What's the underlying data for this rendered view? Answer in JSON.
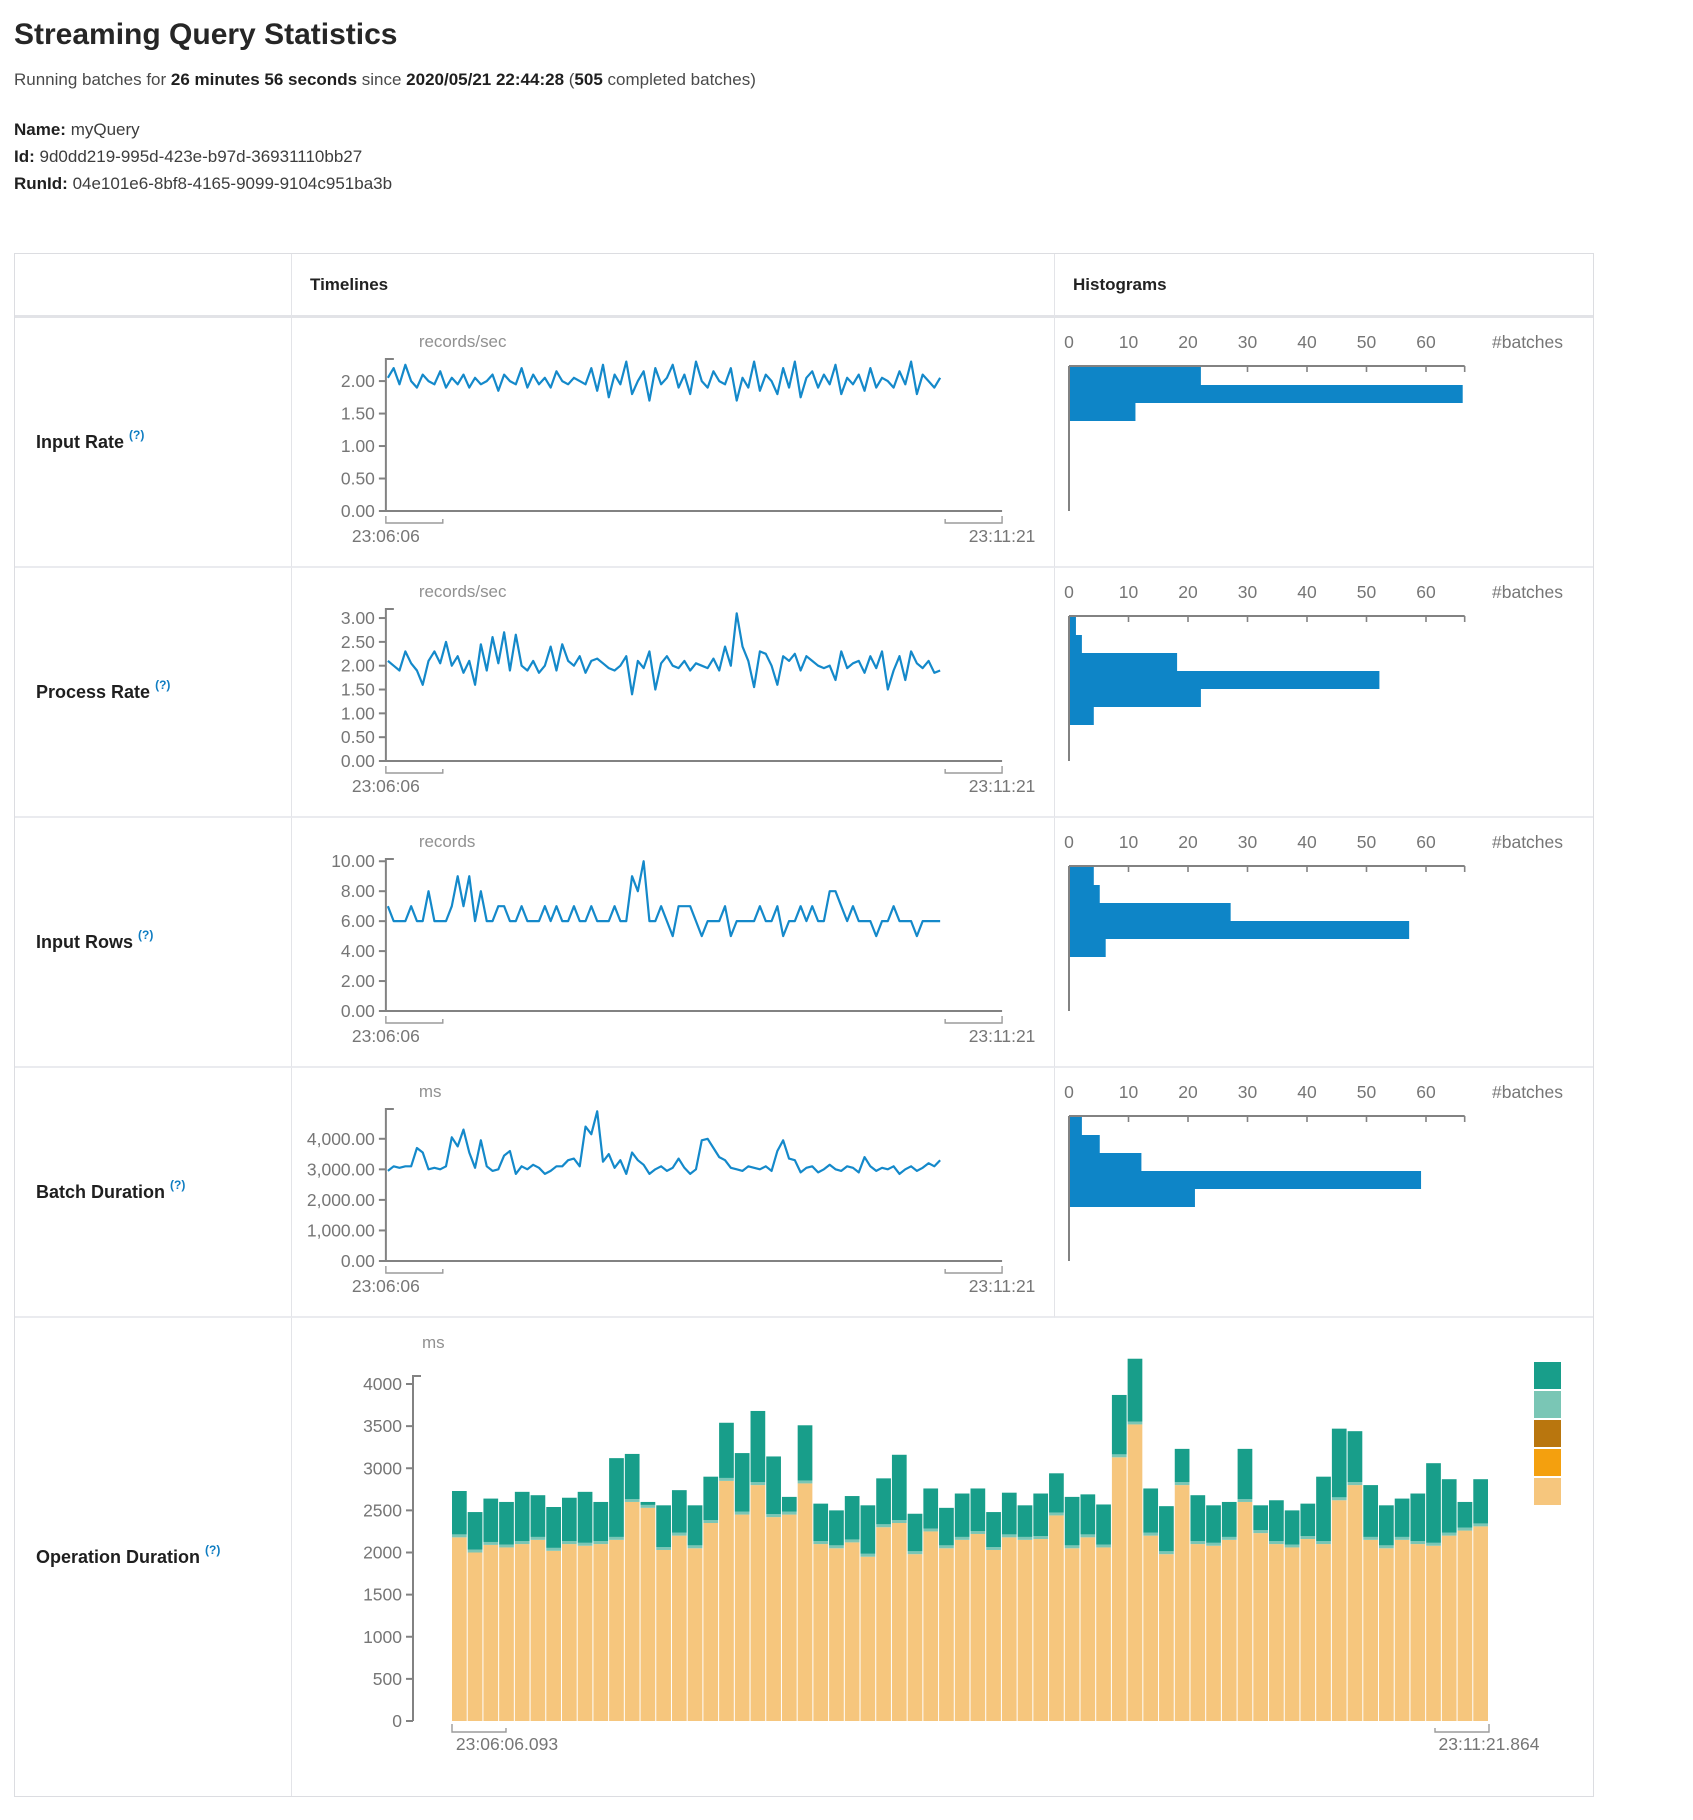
{
  "page": {
    "title": "Streaming Query Statistics",
    "subtitle": {
      "prefix": "Running batches for ",
      "duration": "26 minutes 56 seconds",
      "mid": " since ",
      "since": "2020/05/21 22:44:28",
      "paren_open": " (",
      "completed_count": "505",
      "paren_close": " completed batches)"
    },
    "query": {
      "name_label": "Name:",
      "name_value": "myQuery",
      "id_label": "Id:",
      "id_value": "9d0dd219-995d-423e-b97d-36931110bb27",
      "runid_label": "RunId:",
      "runid_value": "04e101e6-8bf8-4165-9099-9104c951ba3b"
    }
  },
  "table": {
    "headers": {
      "timelines": "Timelines",
      "histograms": "Histograms"
    }
  },
  "ui": {
    "help_marker": "(?)"
  },
  "colors": {
    "line_blue": "#1489ca",
    "hist_blue": "#0e85c7",
    "axis_gray": "#828282",
    "tick_text": "#767676",
    "unit_text": "#919191",
    "op_green": "#189e8a",
    "op_light_teal": "#7ac6b5",
    "op_brown": "#b9760e",
    "op_orange": "#f4a00e",
    "op_tan": "#f6c67d"
  },
  "chart_data": [
    {
      "row": "Input Rate",
      "type": "line",
      "unit": "records/sec",
      "x_start": "23:06:06",
      "x_end": "23:11:21",
      "y_ticks": [
        "0.00",
        "0.50",
        "1.00",
        "1.50",
        "2.00"
      ],
      "y_tick_values": [
        0,
        0.5,
        1,
        1.5,
        2
      ],
      "y_axis_top": 2.34,
      "values": [
        2.05,
        2.2,
        1.95,
        2.25,
        2.0,
        1.9,
        2.1,
        2.0,
        1.95,
        2.15,
        1.9,
        2.05,
        1.95,
        2.1,
        1.9,
        2.05,
        1.95,
        2.0,
        2.1,
        1.85,
        2.1,
        2.0,
        1.95,
        2.2,
        1.9,
        2.1,
        1.95,
        2.05,
        1.9,
        2.15,
        2.0,
        1.95,
        2.05,
        2.0,
        1.95,
        2.2,
        1.85,
        2.25,
        1.75,
        2.1,
        1.95,
        2.3,
        1.8,
        2.0,
        2.15,
        1.7,
        2.2,
        1.95,
        2.05,
        2.25,
        1.9,
        2.1,
        1.8,
        2.3,
        2.0,
        1.9,
        2.15,
        2.0,
        1.95,
        2.2,
        1.7,
        2.05,
        1.9,
        2.3,
        1.85,
        2.1,
        2.0,
        1.8,
        2.2,
        1.9,
        2.3,
        1.75,
        2.05,
        2.15,
        1.9,
        2.1,
        1.95,
        2.25,
        1.8,
        2.05,
        1.95,
        2.1,
        1.85,
        2.2,
        1.9,
        2.05,
        2.0,
        1.9,
        2.15,
        1.95,
        2.3,
        1.8,
        2.1,
        2.0,
        1.9,
        2.05
      ],
      "histogram": {
        "x_ticks": [
          0,
          10,
          20,
          30,
          40,
          50,
          60
        ],
        "x_tick_labels": [
          "0",
          "10",
          "20",
          "30",
          "40",
          "50",
          "60"
        ],
        "axis_end_value": 66.5,
        "label": "#batches",
        "bins": [
          22,
          66,
          11
        ]
      }
    },
    {
      "row": "Process Rate",
      "type": "line",
      "unit": "records/sec",
      "x_start": "23:06:06",
      "x_end": "23:11:21",
      "y_ticks": [
        "0.00",
        "0.50",
        "1.00",
        "1.50",
        "2.00",
        "2.50",
        "3.00"
      ],
      "y_tick_values": [
        0,
        0.5,
        1,
        1.5,
        2,
        2.5,
        3
      ],
      "y_axis_top": 3.19,
      "values": [
        2.1,
        2.0,
        1.9,
        2.3,
        2.05,
        1.9,
        1.6,
        2.1,
        2.3,
        2.05,
        2.5,
        2.0,
        2.2,
        1.85,
        2.1,
        1.6,
        2.45,
        1.9,
        2.6,
        2.05,
        2.7,
        1.9,
        2.65,
        2.0,
        1.9,
        2.1,
        1.85,
        2.0,
        2.4,
        1.9,
        2.45,
        2.1,
        2.0,
        2.2,
        1.85,
        2.1,
        2.15,
        2.05,
        1.95,
        1.9,
        2.0,
        2.2,
        1.4,
        2.1,
        1.95,
        2.3,
        1.5,
        2.05,
        2.2,
        2.0,
        1.95,
        2.1,
        1.9,
        2.05,
        2.0,
        1.95,
        2.15,
        1.9,
        2.4,
        2.0,
        3.1,
        2.4,
        2.1,
        1.55,
        2.3,
        2.25,
        2.0,
        1.6,
        2.2,
        2.1,
        2.25,
        1.9,
        2.2,
        2.1,
        2.0,
        1.95,
        2.0,
        1.7,
        2.3,
        1.95,
        2.05,
        2.1,
        1.85,
        2.2,
        1.95,
        2.3,
        1.5,
        1.9,
        2.2,
        1.7,
        2.3,
        2.05,
        1.95,
        2.1,
        1.85,
        1.9
      ],
      "histogram": {
        "x_ticks": [
          0,
          10,
          20,
          30,
          40,
          50,
          60
        ],
        "x_tick_labels": [
          "0",
          "10",
          "20",
          "30",
          "40",
          "50",
          "60"
        ],
        "axis_end_value": 66.5,
        "label": "#batches",
        "bins": [
          1,
          2,
          18,
          52,
          22,
          4
        ]
      }
    },
    {
      "row": "Input Rows",
      "type": "line",
      "unit": "records",
      "x_start": "23:06:06",
      "x_end": "23:11:21",
      "y_ticks": [
        "0.00",
        "2.00",
        "4.00",
        "6.00",
        "8.00",
        "10.00"
      ],
      "y_tick_values": [
        0,
        2,
        4,
        6,
        8,
        10
      ],
      "y_axis_top": 10.15,
      "values": [
        7,
        6,
        6,
        6,
        7,
        6,
        6,
        8,
        6,
        6,
        6,
        7,
        9,
        7,
        9,
        6,
        8,
        6,
        6,
        7,
        7,
        6,
        6,
        7,
        6,
        6,
        6,
        7,
        6,
        7,
        6,
        6,
        7,
        6,
        6,
        7,
        6,
        6,
        6,
        7,
        6,
        6,
        9,
        8,
        10,
        6,
        6,
        7,
        6,
        5,
        7,
        7,
        7,
        6,
        5,
        6,
        6,
        6,
        7,
        5,
        6,
        6,
        6,
        6,
        7,
        6,
        6,
        7,
        5,
        6,
        6,
        7,
        6,
        7,
        6,
        6,
        8,
        8,
        7,
        6,
        7,
        6,
        6,
        6,
        5,
        6,
        6,
        7,
        6,
        6,
        6,
        5,
        6,
        6,
        6,
        6
      ],
      "histogram": {
        "x_ticks": [
          0,
          10,
          20,
          30,
          40,
          50,
          60
        ],
        "x_tick_labels": [
          "0",
          "10",
          "20",
          "30",
          "40",
          "50",
          "60"
        ],
        "axis_end_value": 66.5,
        "label": "#batches",
        "bins": [
          4,
          5,
          27,
          57,
          6
        ]
      }
    },
    {
      "row": "Batch Duration",
      "type": "line",
      "unit": "ms",
      "x_start": "23:06:06",
      "x_end": "23:11:21",
      "y_ticks": [
        "0.00",
        "1,000.00",
        "2,000.00",
        "3,000.00",
        "4,000.00"
      ],
      "y_tick_values": [
        0,
        1000,
        2000,
        3000,
        4000
      ],
      "y_axis_top": 4975,
      "values": [
        2950,
        3100,
        3050,
        3100,
        3100,
        3700,
        3550,
        3000,
        3050,
        3000,
        3100,
        4050,
        3750,
        4300,
        3550,
        3050,
        3950,
        3100,
        2950,
        3000,
        3450,
        3600,
        2850,
        3100,
        3000,
        3150,
        3050,
        2850,
        2950,
        3100,
        3100,
        3300,
        3350,
        3100,
        4400,
        4150,
        4900,
        3250,
        3500,
        3050,
        3300,
        2850,
        3550,
        3300,
        3150,
        2850,
        3000,
        3100,
        2950,
        3050,
        3350,
        3050,
        2850,
        3000,
        3950,
        4000,
        3700,
        3400,
        3300,
        3050,
        3000,
        2950,
        3100,
        3050,
        3000,
        3100,
        2950,
        3600,
        3950,
        3350,
        3300,
        2900,
        3050,
        3100,
        2900,
        3000,
        3150,
        3000,
        2950,
        3100,
        3050,
        2900,
        3400,
        3100,
        2950,
        3050,
        3000,
        3100,
        2850,
        3000,
        3100,
        2950,
        3050,
        3200,
        3100,
        3300
      ],
      "histogram": {
        "x_ticks": [
          0,
          10,
          20,
          30,
          40,
          50,
          60
        ],
        "x_tick_labels": [
          "0",
          "10",
          "20",
          "30",
          "40",
          "50",
          "60"
        ],
        "axis_end_value": 66.5,
        "label": "#batches",
        "bins": [
          2,
          5,
          12,
          59,
          21
        ]
      }
    },
    {
      "row": "Operation Duration",
      "type": "stacked-bar",
      "unit": "ms",
      "x_start": "23:06:06.093",
      "x_end": "23:11:21.864",
      "y_ticks": [
        "0",
        "500",
        "1000",
        "1500",
        "2000",
        "2500",
        "3000",
        "3500",
        "4000"
      ],
      "y_tick_values": [
        0,
        500,
        1000,
        1500,
        2000,
        2500,
        3000,
        3500,
        4000
      ],
      "y_axis_top": 4540,
      "legend_colors": [
        "#189e8a",
        "#7ac6b5",
        "#b9760e",
        "#f4a00e",
        "#f6c67d"
      ],
      "bars": {
        "bottom_color": "#f6c67d",
        "middle_color": "#7ac6b5",
        "top_color": "#189e8a",
        "middle_sliver": 35,
        "bottom_values": [
          2180,
          2000,
          2090,
          2060,
          2100,
          2150,
          2020,
          2100,
          2080,
          2100,
          2150,
          2600,
          2530,
          2030,
          2200,
          2050,
          2350,
          2850,
          2450,
          2800,
          2420,
          2450,
          2820,
          2100,
          2050,
          2120,
          1950,
          2300,
          2350,
          1980,
          2250,
          2050,
          2150,
          2220,
          2030,
          2180,
          2150,
          2160,
          2440,
          2050,
          2180,
          2060,
          3130,
          3520,
          2200,
          1980,
          2800,
          2100,
          2080,
          2150,
          2600,
          2230,
          2100,
          2060,
          2160,
          2100,
          2620,
          2800,
          2150,
          2050,
          2150,
          2100,
          2080,
          2200,
          2260,
          2310
        ],
        "total_values": [
          2730,
          2480,
          2640,
          2600,
          2720,
          2680,
          2540,
          2650,
          2720,
          2600,
          3120,
          3170,
          2600,
          2560,
          2740,
          2560,
          2900,
          3540,
          3180,
          3680,
          3140,
          2660,
          3510,
          2580,
          2500,
          2670,
          2560,
          2880,
          3160,
          2460,
          2760,
          2530,
          2700,
          2760,
          2480,
          2710,
          2560,
          2700,
          2940,
          2660,
          2690,
          2570,
          3870,
          4300,
          2760,
          2550,
          3230,
          2680,
          2560,
          2600,
          3230,
          2560,
          2620,
          2500,
          2580,
          2900,
          3470,
          3440,
          2800,
          2560,
          2640,
          2700,
          3060,
          2870,
          2600,
          2870
        ]
      }
    }
  ]
}
